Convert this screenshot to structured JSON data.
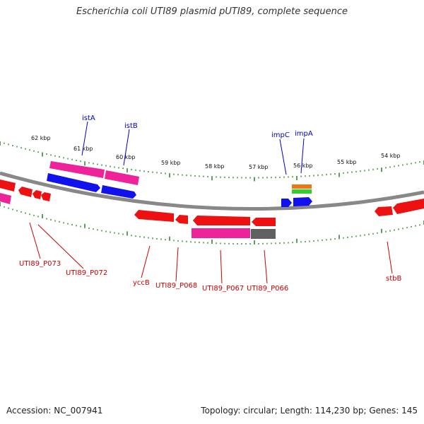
{
  "title": "Escherichia coli UTI89 plasmid pUTI89, complete sequence",
  "footer": {
    "accession": "Accession: NC_007941",
    "summary": "Topology: circular; Length: 114,230 bp; Genes: 145"
  },
  "colors": {
    "backbone": "#808080",
    "tick": "#2e8b2e",
    "gene_red": "#ee1111",
    "gene_blue": "#1111ee",
    "gene_pink": "#ee2299",
    "gene_gray": "#606060",
    "gene_orange": "#ee7711",
    "gene_green": "#33cc33",
    "label_blue": "#0000cc",
    "label_red": "#cc0000"
  },
  "kbp_labels": [
    "62 kbp",
    "61 kbp",
    "60 kbp",
    "59 kbp",
    "58 kbp",
    "57 kbp",
    "56 kbp",
    "55 kbp",
    "54 kbp"
  ],
  "upper_labels": [
    "istA",
    "istB",
    "impC",
    "impA"
  ],
  "lower_labels": [
    "UTI89_P073",
    "UTI89_P072",
    "yccB",
    "UTI89_P068",
    "UTI89_P067",
    "UTI89_P066",
    "stbB"
  ]
}
